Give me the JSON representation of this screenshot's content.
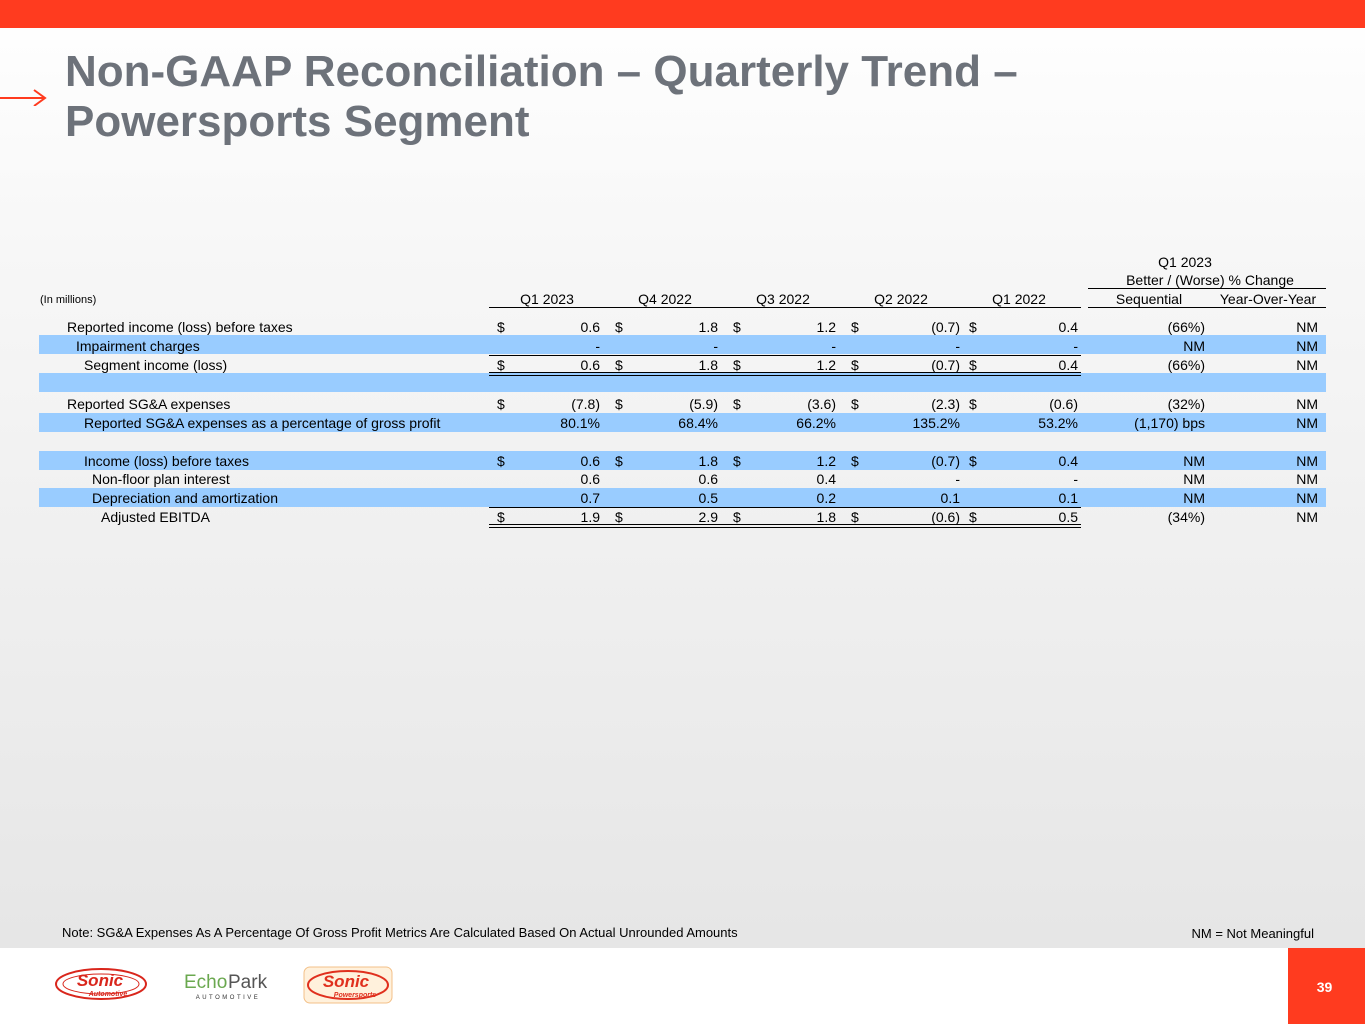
{
  "title": {
    "line1": "Non-GAAP Reconciliation – Quarterly Trend –",
    "line2": "Powersports Segment"
  },
  "table": {
    "units_label": "(In millions)",
    "change_header": {
      "period": "Q1 2023",
      "label": "Better / (Worse) % Change"
    },
    "columns": [
      "Q1 2023",
      "Q4 2022",
      "Q3 2022",
      "Q2 2022",
      "Q1 2022"
    ],
    "change_columns": [
      "Sequential",
      "Year-Over-Year"
    ],
    "currency_symbol": "$",
    "rows": [
      {
        "label": "Reported income (loss) before taxes",
        "values": [
          "0.6",
          "1.8",
          "1.2",
          "(0.7)",
          "0.4"
        ],
        "sequential": "(66%)",
        "yoy": "NM"
      },
      {
        "label": "Impairment charges",
        "values": [
          "-",
          "-",
          "-",
          "-",
          "-"
        ],
        "sequential": "NM",
        "yoy": "NM"
      },
      {
        "label": "Segment income (loss)",
        "values": [
          "0.6",
          "1.8",
          "1.2",
          "(0.7)",
          "0.4"
        ],
        "sequential": "(66%)",
        "yoy": "NM"
      },
      {
        "label": "Reported SG&A expenses",
        "values": [
          "(7.8)",
          "(5.9)",
          "(3.6)",
          "(2.3)",
          "(0.6)"
        ],
        "sequential": "(32%)",
        "yoy": "NM"
      },
      {
        "label": "Reported SG&A expenses as a percentage of gross profit",
        "values": [
          "80.1%",
          "68.4%",
          "66.2%",
          "135.2%",
          "53.2%"
        ],
        "sequential": "(1,170) bps",
        "yoy": "NM"
      },
      {
        "label": "Income (loss) before taxes",
        "values": [
          "0.6",
          "1.8",
          "1.2",
          "(0.7)",
          "0.4"
        ],
        "sequential": "NM",
        "yoy": "NM"
      },
      {
        "label": "Non-floor plan interest",
        "values": [
          "0.6",
          "0.6",
          "0.4",
          "-",
          "-"
        ],
        "sequential": "NM",
        "yoy": "NM"
      },
      {
        "label": "Depreciation and amortization",
        "values": [
          "0.7",
          "0.5",
          "0.2",
          "0.1",
          "0.1"
        ],
        "sequential": "NM",
        "yoy": "NM"
      },
      {
        "label": "Adjusted EBITDA",
        "values": [
          "1.9",
          "2.9",
          "1.8",
          "(0.6)",
          "0.5"
        ],
        "sequential": "(34%)",
        "yoy": "NM"
      }
    ]
  },
  "footnote": "Note: SG&A Expenses As A Percentage Of Gross Profit Metrics Are Calculated Based On Actual Unrounded Amounts",
  "nm_note": "NM = Not Meaningful",
  "page_number": "39",
  "logos": {
    "sonic_automotive": {
      "word": "Sonic",
      "sub": "Automotive"
    },
    "echopark": {
      "word1": "Echo",
      "word2": "Park",
      "sub": "AUTOMOTIVE"
    },
    "sonic_powersports": {
      "word": "Sonic",
      "sub": "Powersports"
    }
  },
  "colors": {
    "accent": "#ff3b1f",
    "title": "#6d727a",
    "band": "#99ccff",
    "echopark_green": "#6aa84f"
  }
}
